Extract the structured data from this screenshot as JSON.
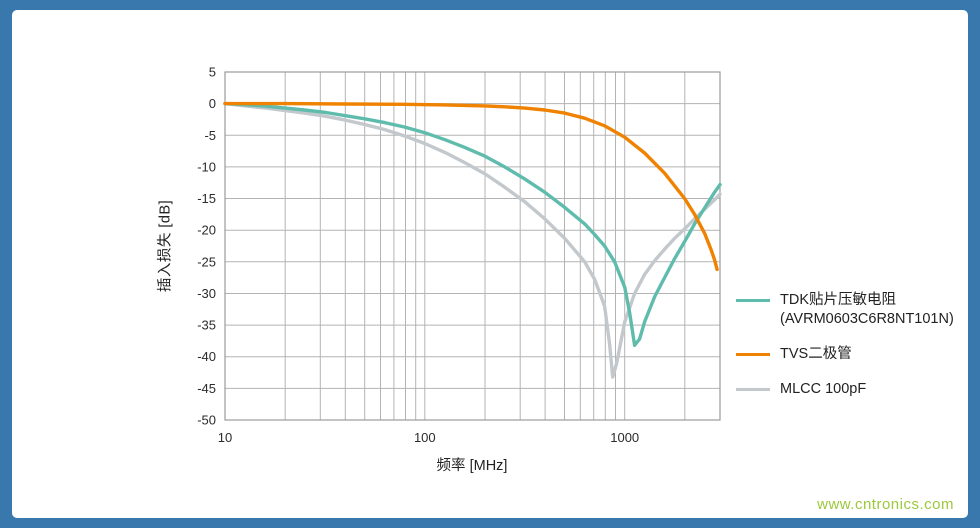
{
  "frame": {
    "border_color": "#3878ad",
    "card_background": "#ffffff"
  },
  "watermark": {
    "text": "www.cntronics.com",
    "color": "#9cc83c"
  },
  "chart_data": {
    "type": "line",
    "title": "",
    "x_axis": {
      "label": "频率 [MHz]",
      "scale": "log",
      "min": 10,
      "max": 3000,
      "major_ticks": [
        10,
        100,
        1000
      ]
    },
    "y_axis": {
      "label": "插入损失 [dB]",
      "min": -50,
      "max": 5,
      "tick_step": 5
    },
    "grid": "on",
    "grid_color": "#b3b3b3",
    "legend_position": "right",
    "series": [
      {
        "name": "TDK贴片压敏电阻",
        "name_line2": "(AVRM0603C6R8NT101N)",
        "color": "#5fbcad",
        "z": 2,
        "points": [
          [
            10,
            0
          ],
          [
            13,
            -0.2
          ],
          [
            16,
            -0.4
          ],
          [
            20,
            -0.7
          ],
          [
            25,
            -1
          ],
          [
            32,
            -1.4
          ],
          [
            40,
            -1.9
          ],
          [
            50,
            -2.4
          ],
          [
            63,
            -3
          ],
          [
            79,
            -3.7
          ],
          [
            100,
            -4.6
          ],
          [
            126,
            -5.7
          ],
          [
            158,
            -6.9
          ],
          [
            200,
            -8.3
          ],
          [
            251,
            -10
          ],
          [
            316,
            -11.9
          ],
          [
            398,
            -14
          ],
          [
            501,
            -16.4
          ],
          [
            631,
            -19
          ],
          [
            708,
            -20.7
          ],
          [
            794,
            -22.5
          ],
          [
            891,
            -25
          ],
          [
            1000,
            -29
          ],
          [
            1059,
            -33
          ],
          [
            1122,
            -38.2
          ],
          [
            1188,
            -37.2
          ],
          [
            1259,
            -34.5
          ],
          [
            1413,
            -30.5
          ],
          [
            1585,
            -27.5
          ],
          [
            1778,
            -24.5
          ],
          [
            1995,
            -21.8
          ],
          [
            2239,
            -19
          ],
          [
            2512,
            -16.5
          ],
          [
            2818,
            -14
          ],
          [
            3000,
            -12.8
          ]
        ]
      },
      {
        "name": "TVS二极管",
        "name_line2": "",
        "color": "#ef8200",
        "z": 3,
        "points": [
          [
            10,
            0
          ],
          [
            20,
            0
          ],
          [
            40,
            -0.05
          ],
          [
            79,
            -0.1
          ],
          [
            126,
            -0.2
          ],
          [
            200,
            -0.35
          ],
          [
            251,
            -0.5
          ],
          [
            316,
            -0.7
          ],
          [
            398,
            -1
          ],
          [
            501,
            -1.5
          ],
          [
            631,
            -2.3
          ],
          [
            794,
            -3.5
          ],
          [
            1000,
            -5.3
          ],
          [
            1259,
            -7.8
          ],
          [
            1585,
            -11
          ],
          [
            1995,
            -15
          ],
          [
            2239,
            -17.5
          ],
          [
            2512,
            -20.5
          ],
          [
            2700,
            -23
          ],
          [
            2818,
            -24.7
          ],
          [
            2900,
            -26.2
          ]
        ]
      },
      {
        "name": "MLCC 100pF",
        "name_line2": "",
        "color": "#c3c8cc",
        "z": 1,
        "points": [
          [
            10,
            0
          ],
          [
            13,
            -0.4
          ],
          [
            16,
            -0.7
          ],
          [
            20,
            -1.1
          ],
          [
            25,
            -1.5
          ],
          [
            32,
            -2
          ],
          [
            40,
            -2.6
          ],
          [
            50,
            -3.3
          ],
          [
            63,
            -4.1
          ],
          [
            79,
            -5.1
          ],
          [
            100,
            -6.3
          ],
          [
            126,
            -7.7
          ],
          [
            158,
            -9.3
          ],
          [
            200,
            -11.1
          ],
          [
            251,
            -13.2
          ],
          [
            316,
            -15.5
          ],
          [
            398,
            -18.2
          ],
          [
            501,
            -21.3
          ],
          [
            631,
            -25
          ],
          [
            708,
            -27.8
          ],
          [
            794,
            -32
          ],
          [
            841,
            -38
          ],
          [
            871,
            -43.2
          ],
          [
            912,
            -41
          ],
          [
            1000,
            -34.5
          ],
          [
            1122,
            -30
          ],
          [
            1259,
            -27
          ],
          [
            1413,
            -24.8
          ],
          [
            1585,
            -23
          ],
          [
            1778,
            -21.3
          ],
          [
            1995,
            -19.8
          ],
          [
            2239,
            -18.2
          ],
          [
            2512,
            -16.7
          ],
          [
            2818,
            -15.2
          ],
          [
            3000,
            -14.3
          ]
        ]
      }
    ]
  }
}
